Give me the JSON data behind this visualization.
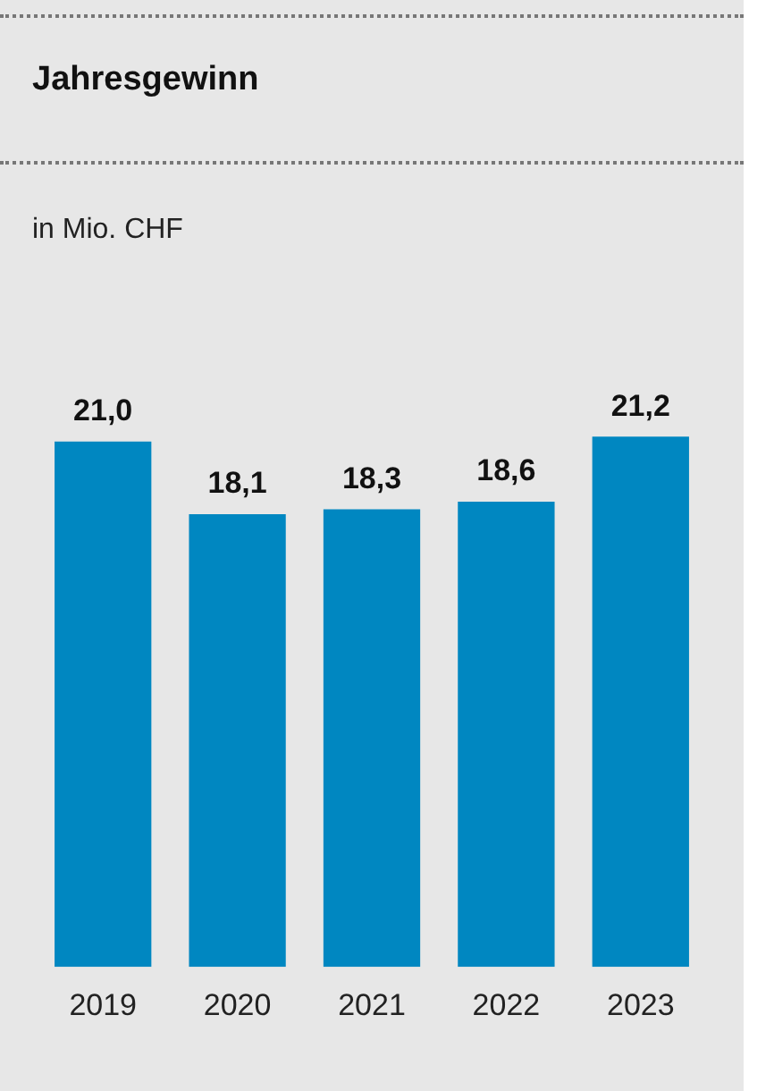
{
  "chart_data": {
    "type": "bar",
    "title": "Jahresgewinn",
    "subtitle": "in Mio. CHF",
    "categories": [
      "2019",
      "2020",
      "2021",
      "2022",
      "2023"
    ],
    "values": [
      21.0,
      18.1,
      18.3,
      18.6,
      21.2
    ],
    "value_labels": [
      "21,0",
      "18,1",
      "18,3",
      "18,6",
      "21,2"
    ],
    "color": "#0087c1",
    "grid": false,
    "legend": false
  }
}
